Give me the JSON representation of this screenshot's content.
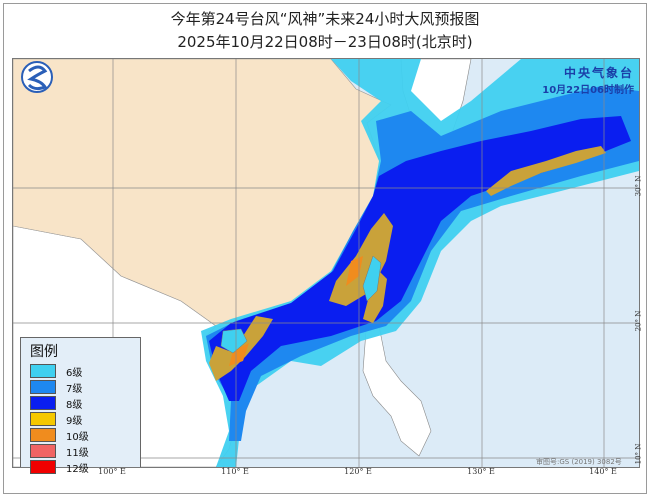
{
  "title": {
    "line1": "今年第24号台风“风神”未来24小时大风预报图",
    "line2": "2025年10月22日08时－23日08时(北京时)"
  },
  "agency": {
    "name": "中央气象台",
    "issued": "10月22日06时制作",
    "logo_icon": "cma-logo-icon"
  },
  "legend": {
    "title": "图例",
    "items": [
      {
        "label": "6级",
        "color": "#3fd0f0"
      },
      {
        "label": "7级",
        "color": "#1e88f0"
      },
      {
        "label": "8级",
        "color": "#0a1ef0"
      },
      {
        "label": "9级",
        "color": "#f5c800"
      },
      {
        "label": "10级",
        "color": "#f08c1e"
      },
      {
        "label": "11级",
        "color": "#f06464"
      },
      {
        "label": "12级",
        "color": "#f00000"
      }
    ]
  },
  "axes": {
    "longitude": [
      "100° E",
      "110° E",
      "120° E",
      "130° E",
      "140° E"
    ],
    "latitude": [
      "30° N",
      "20° N",
      "10° N"
    ]
  },
  "approval": "审图号:GS (2019) 3082号",
  "colors": {
    "sea": "#dcebf7",
    "china_land": "#f8e4c8",
    "other_land": "#ffffff",
    "level9_rendered": "#c9a23a"
  }
}
